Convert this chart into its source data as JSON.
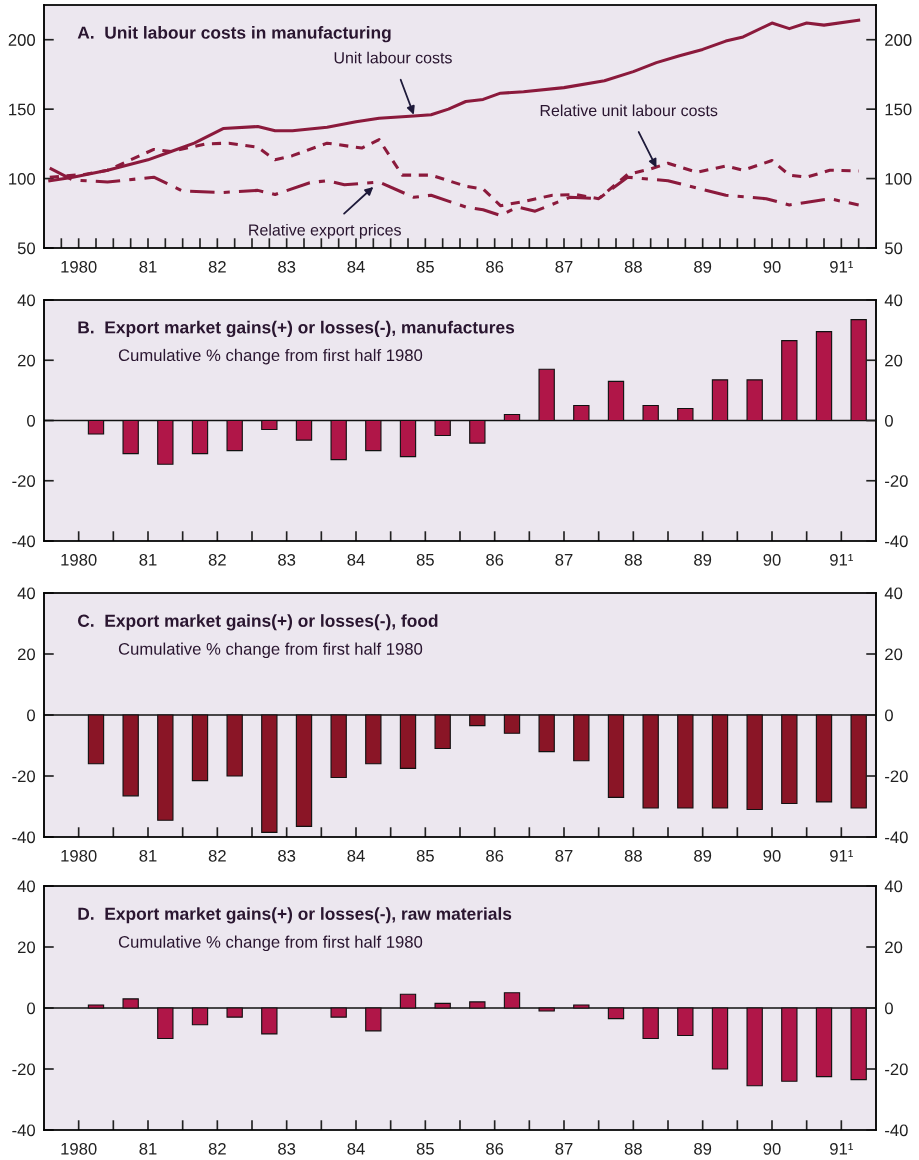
{
  "chart_data": [
    {
      "type": "line",
      "title": "A.  Unit labour costs in manufacturing",
      "xlim": [
        "1980-01",
        "1992-01"
      ],
      "ylim": [
        50,
        225
      ],
      "yticks": [
        50,
        100,
        150,
        200
      ],
      "y2lim": [
        50,
        225
      ],
      "y2ticks": [
        50,
        100,
        150,
        200
      ],
      "xticks": [
        {
          "value": "1980-04",
          "label": null
        },
        {
          "value": "1980-07",
          "label": "1980"
        },
        {
          "value": "1980-10",
          "label": null
        },
        {
          "value": "1981-01",
          "label": null
        },
        {
          "value": "1981-04",
          "label": null
        },
        {
          "value": "1981-07",
          "label": "81"
        },
        {
          "value": "1981-10",
          "label": null
        },
        {
          "value": "1982-01",
          "label": null
        },
        {
          "value": "1982-04",
          "label": null
        },
        {
          "value": "1982-07",
          "label": "82"
        },
        {
          "value": "1982-10",
          "label": null
        },
        {
          "value": "1983-01",
          "label": null
        },
        {
          "value": "1983-04",
          "label": null
        },
        {
          "value": "1983-07",
          "label": "83"
        },
        {
          "value": "1983-10",
          "label": null
        },
        {
          "value": "1984-01",
          "label": null
        },
        {
          "value": "1984-04",
          "label": null
        },
        {
          "value": "1984-07",
          "label": "84"
        },
        {
          "value": "1984-10",
          "label": null
        },
        {
          "value": "1985-01",
          "label": null
        },
        {
          "value": "1985-04",
          "label": null
        },
        {
          "value": "1985-07",
          "label": "85"
        },
        {
          "value": "1985-10",
          "label": null
        },
        {
          "value": "1986-01",
          "label": null
        },
        {
          "value": "1986-04",
          "label": null
        },
        {
          "value": "1986-07",
          "label": "86"
        },
        {
          "value": "1986-10",
          "label": null
        },
        {
          "value": "1987-01",
          "label": null
        },
        {
          "value": "1987-04",
          "label": null
        },
        {
          "value": "1987-07",
          "label": "87"
        },
        {
          "value": "1987-10",
          "label": null
        },
        {
          "value": "1988-01",
          "label": null
        },
        {
          "value": "1988-04",
          "label": null
        },
        {
          "value": "1988-07",
          "label": "88"
        },
        {
          "value": "1988-10",
          "label": null
        },
        {
          "value": "1989-01",
          "label": null
        },
        {
          "value": "1989-04",
          "label": null
        },
        {
          "value": "1989-07",
          "label": "89"
        },
        {
          "value": "1989-10",
          "label": null
        },
        {
          "value": "1990-01",
          "label": null
        },
        {
          "value": "1990-04",
          "label": null
        },
        {
          "value": "1990-07",
          "label": "90"
        },
        {
          "value": "1990-10",
          "label": null
        },
        {
          "value": "1991-01",
          "label": null
        },
        {
          "value": "1991-04",
          "label": null
        },
        {
          "value": "1991-07",
          "label": "91¹"
        },
        {
          "value": "1991-10",
          "label": null
        }
      ],
      "series": [
        {
          "color": "#8b1a3c",
          "line_style": "solid",
          "x": [
            "1980-02",
            "1980-06",
            "1980-12",
            "1981-07",
            "1981-11",
            "1982-03",
            "1982-08",
            "1983-02",
            "1983-05",
            "1983-08",
            "1984-02",
            "1984-07",
            "1984-11",
            "1985-05",
            "1985-08",
            "1985-11",
            "1986-02",
            "1986-05",
            "1986-08",
            "1986-12",
            "1987-07",
            "1988-02",
            "1988-07",
            "1988-11",
            "1989-03",
            "1989-07",
            "1989-11",
            "1990-02",
            "1990-07",
            "1990-10",
            "1991-01",
            "1991-04",
            "1991-10"
          ],
          "values": [
            98.5,
            101,
            106,
            113.5,
            119.5,
            125.5,
            136,
            137.5,
            134.5,
            134.5,
            137,
            141,
            143.5,
            145,
            146,
            150,
            155.5,
            157,
            161.5,
            162.5,
            165.5,
            170.5,
            177,
            183.5,
            188.5,
            193,
            199,
            202,
            212,
            208,
            212,
            210.5,
            214
          ]
        },
        {
          "color": "#8b1a3c",
          "line_style": "dotted",
          "x": [
            "1980-02",
            "1980-08",
            "1980-12",
            "1981-08",
            "1981-11",
            "1982-05",
            "1982-09",
            "1983-02",
            "1983-05",
            "1983-08",
            "1984-02",
            "1984-08",
            "1984-11",
            "1985-03",
            "1985-08",
            "1986-02",
            "1986-05",
            "1986-08",
            "1986-12",
            "1987-05",
            "1987-09",
            "1988-01",
            "1988-06",
            "1988-10",
            "1989-01",
            "1989-06",
            "1989-11",
            "1990-02",
            "1990-07",
            "1990-10",
            "1991-01",
            "1991-05",
            "1991-10"
          ],
          "values": [
            101,
            103,
            106,
            121,
            119.5,
            125,
            125.5,
            122.5,
            113.5,
            116.5,
            125.5,
            122,
            128,
            102.5,
            102.5,
            94.5,
            92.5,
            80.5,
            83.5,
            88,
            88.5,
            85.5,
            103,
            107,
            111,
            104.5,
            109,
            106,
            113,
            102.5,
            101,
            106,
            105.5
          ]
        },
        {
          "color": "#8b1a3c",
          "line_style": "dashed",
          "x": [
            "1980-02",
            "1980-06",
            "1980-12",
            "1981-08",
            "1982-01",
            "1982-08",
            "1983-02",
            "1983-05",
            "1983-11",
            "1984-02",
            "1984-05",
            "1984-11",
            "1985-05",
            "1985-08",
            "1986-02",
            "1986-05",
            "1986-08",
            "1986-11",
            "1987-02",
            "1987-08",
            "1988-01",
            "1988-06",
            "1989-01",
            "1989-11",
            "1990-06",
            "1990-10",
            "1991-05",
            "1991-10"
          ],
          "values": [
            107.5,
            99,
            97.5,
            101,
            91,
            90,
            91.5,
            88.5,
            97,
            98.5,
            95.5,
            97.5,
            86.5,
            88,
            79.5,
            77.5,
            73.5,
            79.5,
            76.5,
            86.5,
            85.5,
            101,
            98.5,
            88,
            85.5,
            81,
            85.5,
            81
          ]
        }
      ],
      "annotations": [
        {
          "text": "Unit labour costs",
          "x": "1985-05",
          "y": 146
        },
        {
          "text": "Relative unit labour costs",
          "x": "1988-11",
          "y": 108
        },
        {
          "text": "Relative export prices",
          "x": "1984-10",
          "y": 94
        }
      ]
    },
    {
      "type": "bar",
      "title": "B.  Export market gains(+) or losses(-), manufactures",
      "subtitle": "Cumulative % change from first half 1980",
      "color": "#b01648",
      "xlim": [
        "1980-01",
        "1992-01"
      ],
      "ylim": [
        -40,
        40
      ],
      "yticks": [
        -40,
        -20,
        0,
        20,
        40
      ],
      "y2lim": [
        -40,
        40
      ],
      "y2ticks": [
        -40,
        -20,
        0,
        20,
        40
      ],
      "xticks": [
        {
          "value": "1980-07",
          "label": "1980"
        },
        {
          "value": "1981-01",
          "label": null
        },
        {
          "value": "1981-07",
          "label": "81"
        },
        {
          "value": "1982-01",
          "label": null
        },
        {
          "value": "1982-07",
          "label": "82"
        },
        {
          "value": "1983-01",
          "label": null
        },
        {
          "value": "1983-07",
          "label": "83"
        },
        {
          "value": "1984-01",
          "label": null
        },
        {
          "value": "1984-07",
          "label": "84"
        },
        {
          "value": "1985-01",
          "label": null
        },
        {
          "value": "1985-07",
          "label": "85"
        },
        {
          "value": "1986-01",
          "label": null
        },
        {
          "value": "1986-07",
          "label": "86"
        },
        {
          "value": "1987-01",
          "label": null
        },
        {
          "value": "1987-07",
          "label": "87"
        },
        {
          "value": "1988-01",
          "label": null
        },
        {
          "value": "1988-07",
          "label": "88"
        },
        {
          "value": "1989-01",
          "label": null
        },
        {
          "value": "1989-07",
          "label": "89"
        },
        {
          "value": "1990-01",
          "label": null
        },
        {
          "value": "1990-07",
          "label": "90"
        },
        {
          "value": "1991-01",
          "label": null
        },
        {
          "value": "1991-07",
          "label": "91¹"
        }
      ],
      "x": [
        "1980-10",
        "1981-04",
        "1981-10",
        "1982-04",
        "1982-10",
        "1983-04",
        "1983-10",
        "1984-04",
        "1984-10",
        "1985-04",
        "1985-10",
        "1986-04",
        "1986-10",
        "1987-04",
        "1987-10",
        "1988-04",
        "1988-10",
        "1989-04",
        "1989-10",
        "1990-04",
        "1990-10",
        "1991-04",
        "1991-10"
      ],
      "values": [
        -4.5,
        -11,
        -14.5,
        -11,
        -10,
        -3,
        -6.5,
        -13,
        -10,
        -12,
        -5,
        -7.5,
        2,
        17,
        5,
        13,
        5,
        4,
        13.5,
        13.5,
        26.5,
        29.5,
        33.5
      ]
    },
    {
      "type": "bar",
      "title": "C.  Export market gains(+) or losses(-), food",
      "subtitle": "Cumulative % change from first half 1980",
      "color": "#8a1526",
      "xlim": [
        "1980-01",
        "1992-01"
      ],
      "ylim": [
        -40,
        40
      ],
      "yticks": [
        -40,
        -20,
        0,
        20,
        40
      ],
      "y2lim": [
        -40,
        40
      ],
      "y2ticks": [
        -40,
        -20,
        0,
        20,
        40
      ],
      "xticks": [
        {
          "value": "1980-07",
          "label": "1980"
        },
        {
          "value": "1981-01",
          "label": null
        },
        {
          "value": "1981-07",
          "label": "81"
        },
        {
          "value": "1982-01",
          "label": null
        },
        {
          "value": "1982-07",
          "label": "82"
        },
        {
          "value": "1983-01",
          "label": null
        },
        {
          "value": "1983-07",
          "label": "83"
        },
        {
          "value": "1984-01",
          "label": null
        },
        {
          "value": "1984-07",
          "label": "84"
        },
        {
          "value": "1985-01",
          "label": null
        },
        {
          "value": "1985-07",
          "label": "85"
        },
        {
          "value": "1986-01",
          "label": null
        },
        {
          "value": "1986-07",
          "label": "86"
        },
        {
          "value": "1987-01",
          "label": null
        },
        {
          "value": "1987-07",
          "label": "87"
        },
        {
          "value": "1988-01",
          "label": null
        },
        {
          "value": "1988-07",
          "label": "88"
        },
        {
          "value": "1989-01",
          "label": null
        },
        {
          "value": "1989-07",
          "label": "89"
        },
        {
          "value": "1990-01",
          "label": null
        },
        {
          "value": "1990-07",
          "label": "90"
        },
        {
          "value": "1991-01",
          "label": null
        },
        {
          "value": "1991-07",
          "label": "91¹"
        }
      ],
      "x": [
        "1980-10",
        "1981-04",
        "1981-10",
        "1982-04",
        "1982-10",
        "1983-04",
        "1983-10",
        "1984-04",
        "1984-10",
        "1985-04",
        "1985-10",
        "1986-04",
        "1986-10",
        "1987-04",
        "1987-10",
        "1988-04",
        "1988-10",
        "1989-04",
        "1989-10",
        "1990-04",
        "1990-10",
        "1991-04",
        "1991-10"
      ],
      "values": [
        -16,
        -26.5,
        -34.5,
        -21.5,
        -20,
        -38.5,
        -36.5,
        -20.5,
        -16,
        -17.5,
        -11,
        -3.5,
        -6,
        -12,
        -15,
        -27,
        -30.5,
        -30.5,
        -30.5,
        -31,
        -29,
        -28.5,
        -30.5
      ]
    },
    {
      "type": "bar",
      "title": "D.  Export market gains(+) or losses(-), raw materials",
      "subtitle": "Cumulative % change from first half 1980",
      "color": "#b01648",
      "xlim": [
        "1980-01",
        "1992-01"
      ],
      "ylim": [
        -40,
        40
      ],
      "yticks": [
        -40,
        -20,
        0,
        20,
        40
      ],
      "y2lim": [
        -40,
        40
      ],
      "y2ticks": [
        -40,
        -20,
        0,
        20,
        40
      ],
      "xticks": [
        {
          "value": "1980-07",
          "label": "1980"
        },
        {
          "value": "1981-01",
          "label": null
        },
        {
          "value": "1981-07",
          "label": "81"
        },
        {
          "value": "1982-01",
          "label": null
        },
        {
          "value": "1982-07",
          "label": "82"
        },
        {
          "value": "1983-01",
          "label": null
        },
        {
          "value": "1983-07",
          "label": "83"
        },
        {
          "value": "1984-01",
          "label": null
        },
        {
          "value": "1984-07",
          "label": "84"
        },
        {
          "value": "1985-01",
          "label": null
        },
        {
          "value": "1985-07",
          "label": "85"
        },
        {
          "value": "1986-01",
          "label": null
        },
        {
          "value": "1986-07",
          "label": "86"
        },
        {
          "value": "1987-01",
          "label": null
        },
        {
          "value": "1987-07",
          "label": "87"
        },
        {
          "value": "1988-01",
          "label": null
        },
        {
          "value": "1988-07",
          "label": "88"
        },
        {
          "value": "1989-01",
          "label": null
        },
        {
          "value": "1989-07",
          "label": "89"
        },
        {
          "value": "1990-01",
          "label": null
        },
        {
          "value": "1990-07",
          "label": "90"
        },
        {
          "value": "1991-01",
          "label": null
        },
        {
          "value": "1991-07",
          "label": "91¹"
        }
      ],
      "x": [
        "1980-10",
        "1981-04",
        "1981-10",
        "1982-04",
        "1982-10",
        "1983-04",
        "1983-10",
        "1984-04",
        "1984-10",
        "1985-04",
        "1985-10",
        "1986-04",
        "1986-10",
        "1987-04",
        "1987-10",
        "1988-04",
        "1988-10",
        "1989-04",
        "1989-10",
        "1990-04",
        "1990-10",
        "1991-04",
        "1991-10"
      ],
      "values": [
        1,
        3,
        -10,
        -5.5,
        -3,
        -8.5,
        null,
        -3,
        -7.5,
        4.5,
        1.5,
        2,
        5,
        -1,
        1,
        -3.5,
        -10,
        -9,
        -20,
        -25.5,
        -24,
        -22.5,
        -23.5
      ]
    }
  ]
}
